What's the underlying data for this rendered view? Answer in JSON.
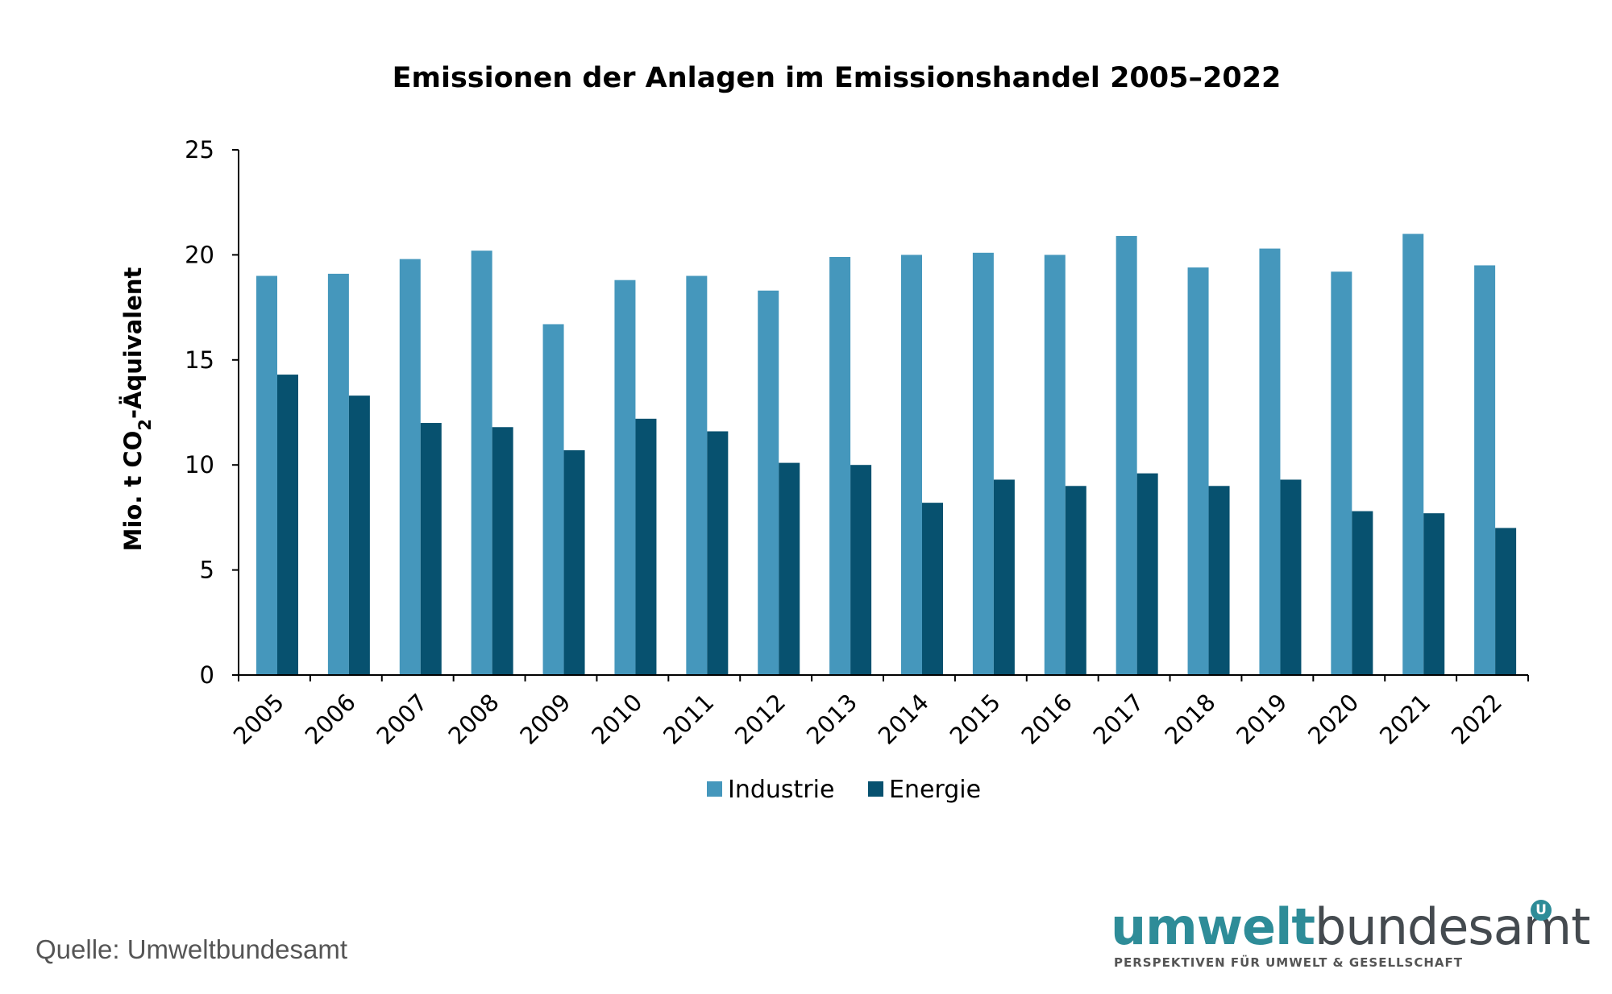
{
  "chart_data": {
    "type": "bar",
    "title": "Emissionen der Anlagen im Emissionshandel 2005–2022",
    "ylabel_main": "Mio. t CO",
    "ylabel_sub": "2",
    "ylabel_rest": "-Äquivalent",
    "ylim": [
      0,
      25
    ],
    "yticks": [
      0,
      5,
      10,
      15,
      20,
      25
    ],
    "grid": false,
    "legend_position": "bottom-center",
    "categories": [
      "2005",
      "2006",
      "2007",
      "2008",
      "2009",
      "2010",
      "2011",
      "2012",
      "2013",
      "2014",
      "2015",
      "2016",
      "2017",
      "2018",
      "2019",
      "2020",
      "2021",
      "2022"
    ],
    "series": [
      {
        "name": "Industrie",
        "color": "#4597bc",
        "values": [
          19.0,
          19.1,
          19.8,
          20.2,
          16.7,
          18.8,
          19.0,
          18.3,
          19.9,
          20.0,
          20.1,
          20.0,
          20.9,
          19.4,
          20.3,
          19.2,
          21.0,
          19.5
        ]
      },
      {
        "name": "Energie",
        "color": "#07516f",
        "values": [
          14.3,
          13.3,
          12.0,
          11.8,
          10.7,
          12.2,
          11.6,
          10.1,
          10.0,
          8.2,
          9.3,
          9.0,
          9.6,
          9.0,
          9.3,
          7.8,
          7.7,
          7.0
        ]
      }
    ]
  },
  "source": "Quelle: Umweltbundesamt",
  "logo": {
    "part1": "umwelt",
    "part2": "bundesamt",
    "badge": "U",
    "tagline": "PERSPEKTIVEN FÜR UMWELT & GESELLSCHAFT"
  }
}
